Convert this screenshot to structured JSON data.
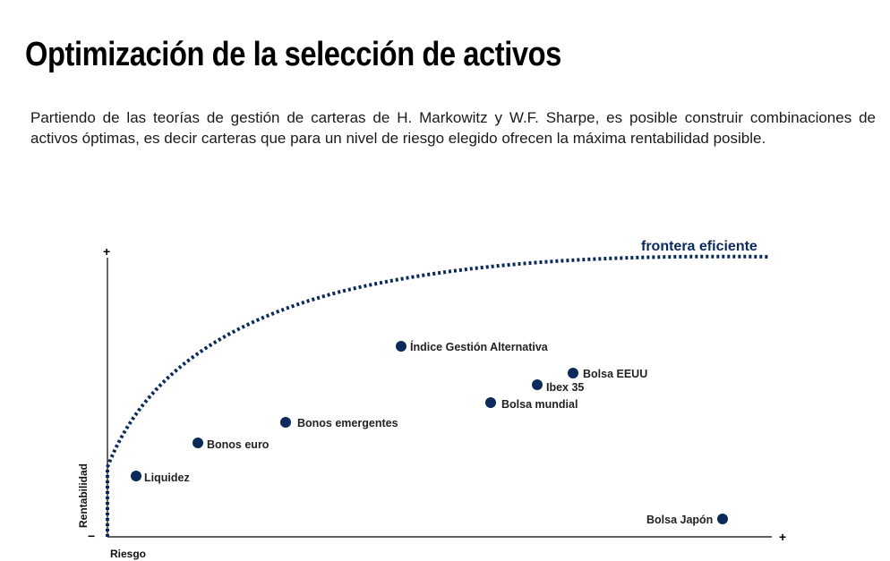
{
  "title": "Optimización de la selección de activos",
  "intro": "Partiendo de las teorías de gestión de carteras de H. Markowitz y W.F. Sharpe, es posible construir combinaciones de activos óptimas, es decir carteras que para un nivel de riesgo elegido ofrecen la máxima rentabilidad posible.",
  "diagram": {
    "frontier_label": "frontera eficiente",
    "x_axis_label": "Riesgo",
    "y_axis_label": "Rentabilidad",
    "y_axis_top_sign": "+",
    "y_axis_bottom_sign": "−",
    "x_axis_end_sign": "+",
    "colors": {
      "point": "#0b2a5c",
      "frontier": "#0b2a5c",
      "axis": "#000000"
    },
    "assets": [
      {
        "name": "Liquidez"
      },
      {
        "name": "Bonos euro"
      },
      {
        "name": "Bonos emergentes"
      },
      {
        "name": "Índice Gestión Alternativa"
      },
      {
        "name": "Bolsa mundial"
      },
      {
        "name": "Ibex 35"
      },
      {
        "name": "Bolsa EEUU"
      },
      {
        "name": "Bolsa Japón"
      }
    ]
  }
}
